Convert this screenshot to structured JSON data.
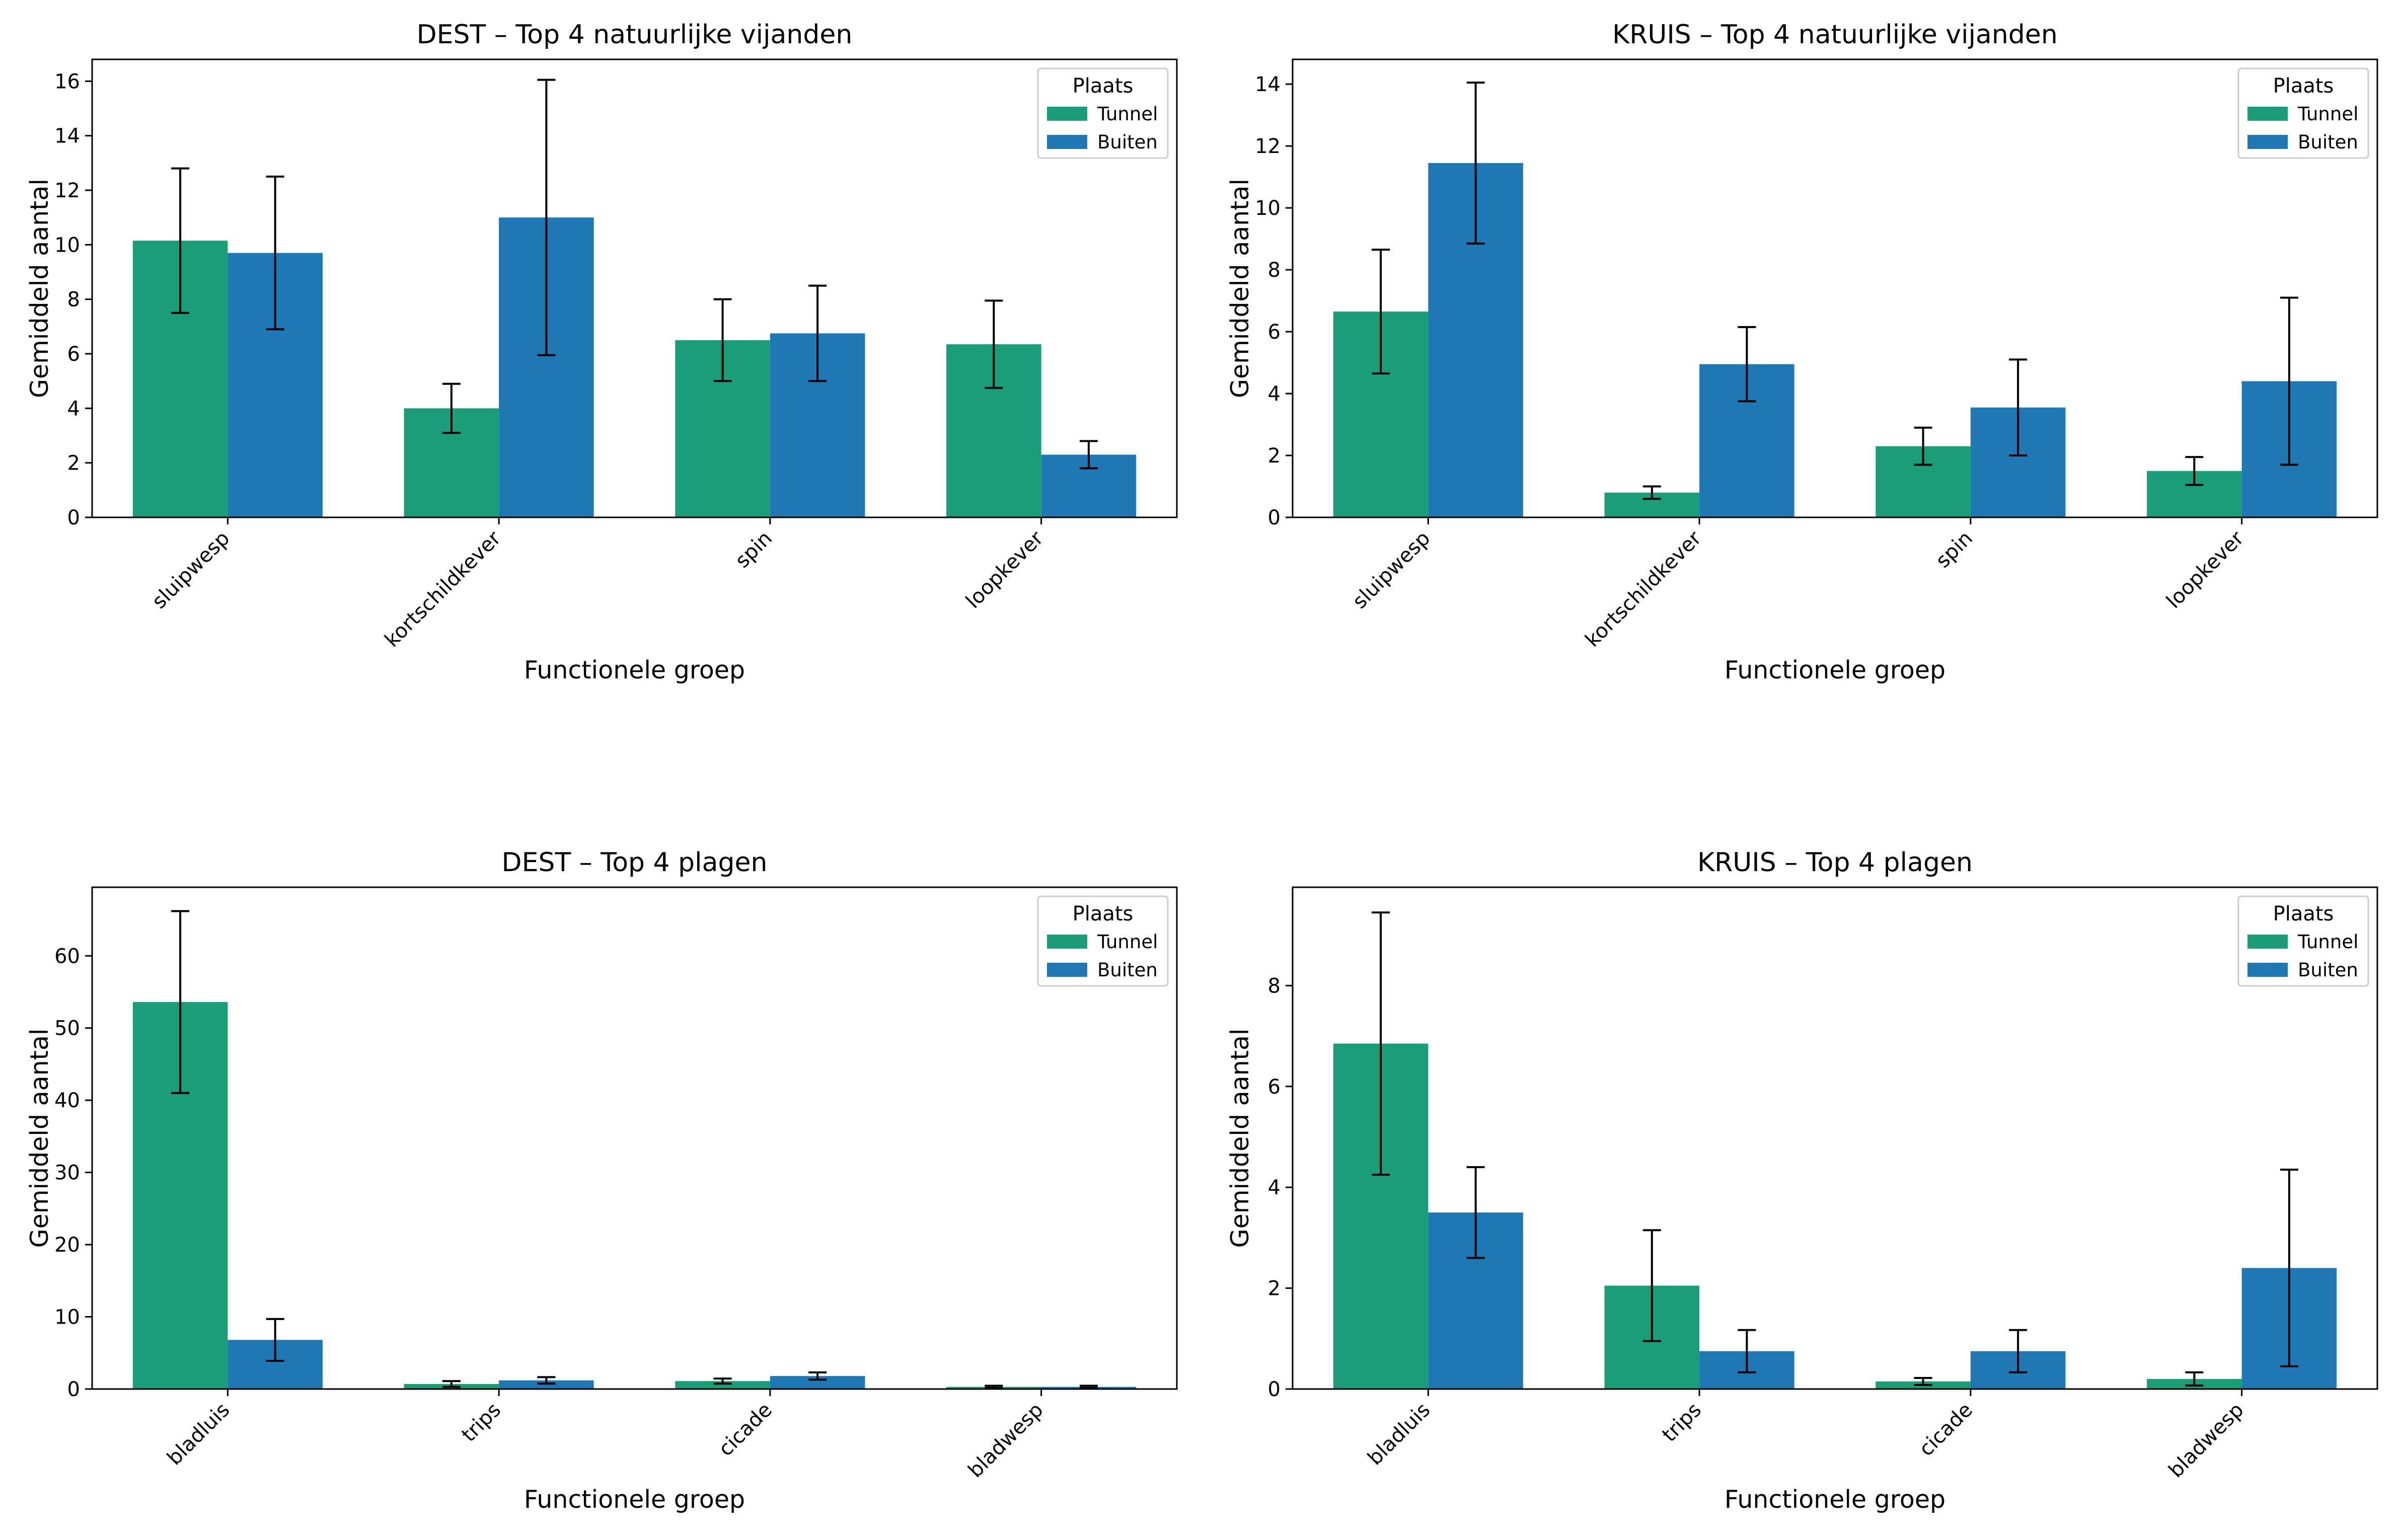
{
  "colors": {
    "tunnel": "#1b9e77",
    "buiten": "#1f77b4",
    "error": "#000000",
    "axes": "#000000"
  },
  "chart_data": [
    {
      "type": "bar",
      "title": "DEST – Top 4 natuurlijke vijanden",
      "xlabel": "Functionele groep",
      "ylabel": "Gemiddeld aantal",
      "categories": [
        "sluipwesp",
        "kortschildkever",
        "spin",
        "loopkever"
      ],
      "ylim": [
        0,
        16.8
      ],
      "yticks": [
        0,
        2,
        4,
        6,
        8,
        10,
        12,
        14,
        16
      ],
      "legend": {
        "title": "Plaats",
        "position": "top-right"
      },
      "series": [
        {
          "name": "Tunnel",
          "values": [
            10.15,
            4.0,
            6.5,
            6.35
          ],
          "errors": [
            2.65,
            0.9,
            1.5,
            1.6
          ]
        },
        {
          "name": "Buiten",
          "values": [
            9.7,
            11.0,
            6.75,
            2.3
          ],
          "errors": [
            2.8,
            5.05,
            1.75,
            0.5
          ]
        }
      ]
    },
    {
      "type": "bar",
      "title": "KRUIS – Top 4 natuurlijke vijanden",
      "xlabel": "Functionele groep",
      "ylabel": "Gemiddeld aantal",
      "categories": [
        "sluipwesp",
        "kortschildkever",
        "spin",
        "loopkever"
      ],
      "ylim": [
        0,
        14.8
      ],
      "yticks": [
        0,
        2,
        4,
        6,
        8,
        10,
        12,
        14
      ],
      "legend": {
        "title": "Plaats",
        "position": "top-right"
      },
      "series": [
        {
          "name": "Tunnel",
          "values": [
            6.65,
            0.8,
            2.3,
            1.5
          ],
          "errors": [
            2.0,
            0.2,
            0.6,
            0.45
          ]
        },
        {
          "name": "Buiten",
          "values": [
            11.45,
            4.95,
            3.55,
            4.4
          ],
          "errors": [
            2.6,
            1.2,
            1.55,
            2.7
          ]
        }
      ]
    },
    {
      "type": "bar",
      "title": "DEST – Top 4 plagen",
      "xlabel": "Functionele groep",
      "ylabel": "Gemiddeld aantal",
      "categories": [
        "bladluis",
        "trips",
        "cicade",
        "bladwesp"
      ],
      "ylim": [
        0,
        69.5
      ],
      "yticks": [
        0,
        10,
        20,
        30,
        40,
        50,
        60
      ],
      "legend": {
        "title": "Plaats",
        "position": "top-right"
      },
      "series": [
        {
          "name": "Tunnel",
          "values": [
            53.6,
            0.7,
            1.1,
            0.3
          ],
          "errors": [
            12.6,
            0.4,
            0.35,
            0.15
          ]
        },
        {
          "name": "Buiten",
          "values": [
            6.8,
            1.2,
            1.8,
            0.3
          ],
          "errors": [
            2.9,
            0.45,
            0.5,
            0.15
          ]
        }
      ]
    },
    {
      "type": "bar",
      "title": "KRUIS – Top 4 plagen",
      "xlabel": "Functionele groep",
      "ylabel": "Gemiddeld aantal",
      "categories": [
        "bladluis",
        "trips",
        "cicade",
        "bladwesp"
      ],
      "ylim": [
        0,
        9.95
      ],
      "yticks": [
        0,
        2,
        4,
        6,
        8
      ],
      "legend": {
        "title": "Plaats",
        "position": "top-right"
      },
      "series": [
        {
          "name": "Tunnel",
          "values": [
            6.85,
            2.05,
            0.15,
            0.2
          ],
          "errors": [
            2.6,
            1.1,
            0.07,
            0.13
          ]
        },
        {
          "name": "Buiten",
          "values": [
            3.5,
            0.75,
            0.75,
            2.4
          ],
          "errors": [
            0.9,
            0.42,
            0.42,
            1.95
          ]
        }
      ]
    }
  ]
}
